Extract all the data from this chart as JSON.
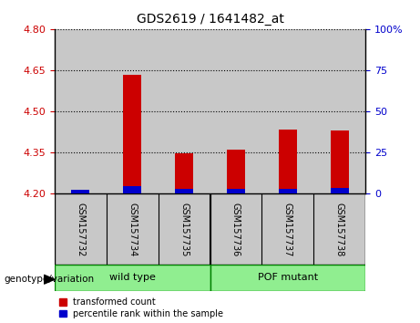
{
  "title": "GDS2619 / 1641482_at",
  "samples": [
    "GSM157732",
    "GSM157734",
    "GSM157735",
    "GSM157736",
    "GSM157737",
    "GSM157738"
  ],
  "red_tops": [
    4.213,
    4.635,
    4.347,
    4.36,
    4.435,
    4.43
  ],
  "blue_tops": [
    4.215,
    4.228,
    4.218,
    4.217,
    4.218,
    4.22
  ],
  "baseline": 4.2,
  "ylim_left": [
    4.2,
    4.8
  ],
  "ylim_right": [
    0,
    100
  ],
  "left_ticks": [
    4.2,
    4.35,
    4.5,
    4.65,
    4.8
  ],
  "right_ticks": [
    0,
    25,
    50,
    75,
    100
  ],
  "right_tick_labels": [
    "0",
    "25",
    "50",
    "75",
    "100%"
  ],
  "red_color": "#cc0000",
  "blue_color": "#0000cc",
  "bar_bg_color": "#c8c8c8",
  "group_bg_color": "#90ee90",
  "group_border_color": "#008000",
  "groups": [
    {
      "label": "wild type",
      "samples": [
        0,
        1,
        2
      ]
    },
    {
      "label": "POF mutant",
      "samples": [
        3,
        4,
        5
      ]
    }
  ],
  "bar_width": 0.35,
  "grid_color": "black",
  "left_tick_color": "#cc0000",
  "right_tick_color": "#0000cc",
  "legend_red_label": "transformed count",
  "legend_blue_label": "percentile rank within the sample",
  "genotype_label": "genotype/variation"
}
